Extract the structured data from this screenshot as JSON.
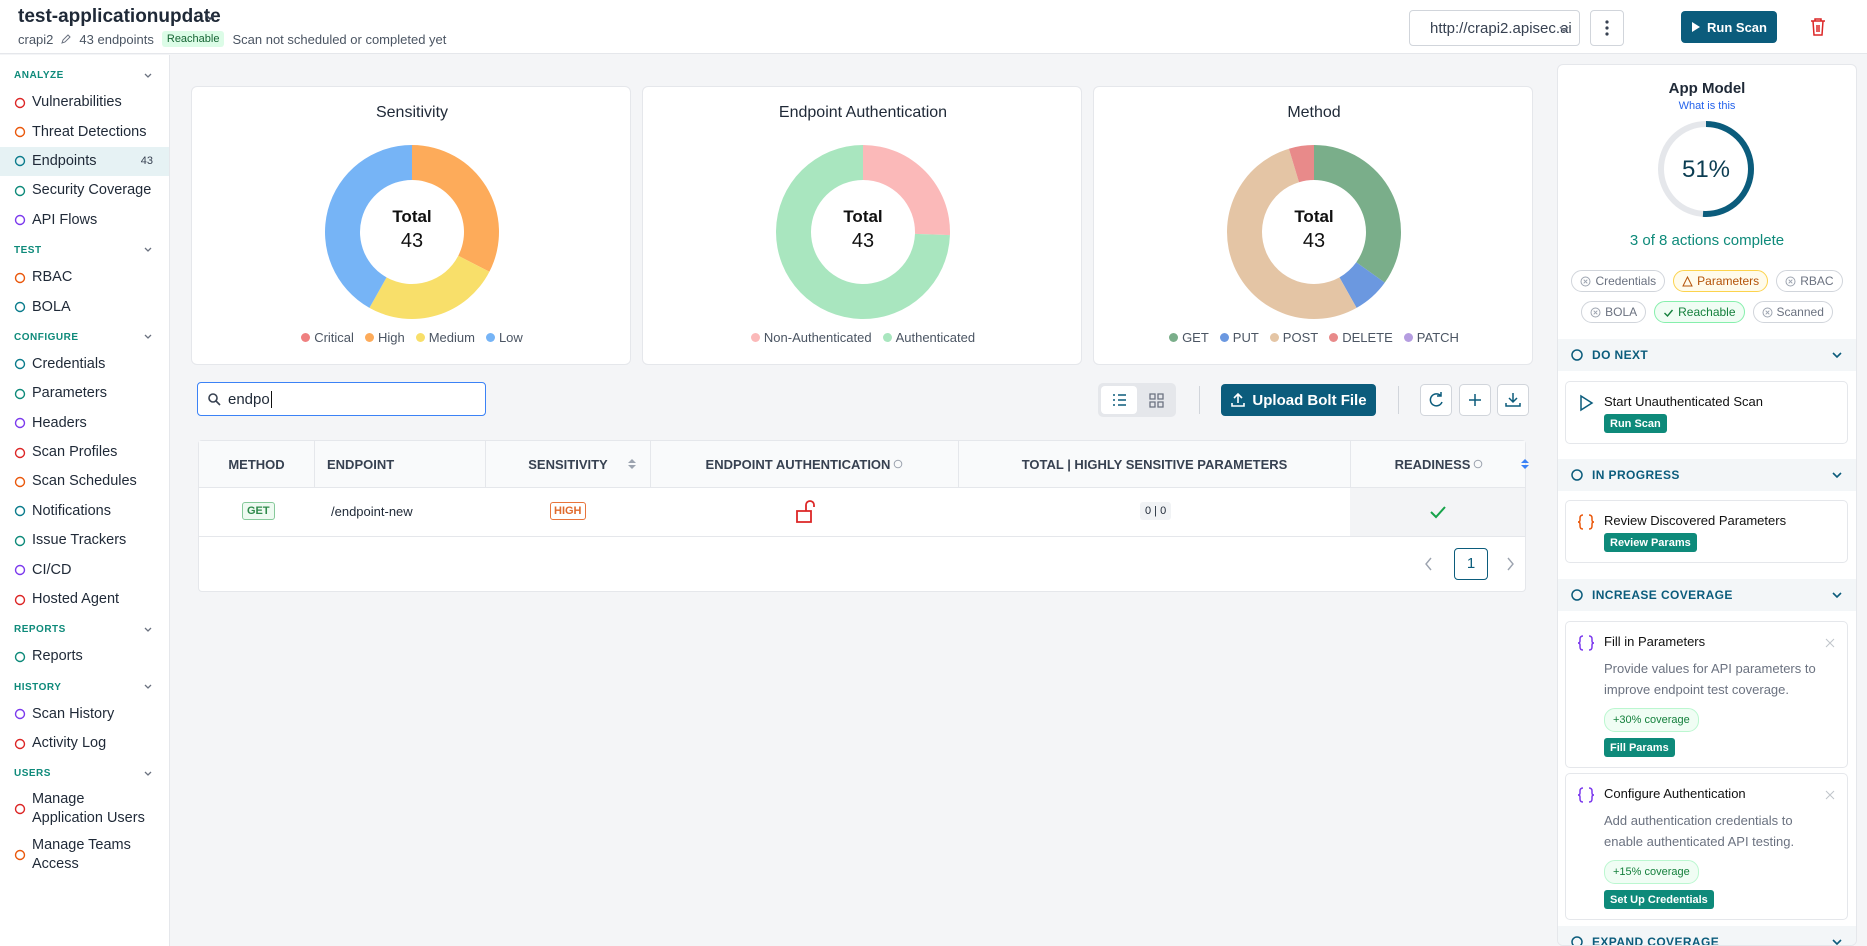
{
  "header": {
    "title": "test-applicationupdate",
    "project": "crapi2",
    "endpoints": "43 endpoints",
    "status": "Reachable",
    "scan_status": "Scan not scheduled or completed yet",
    "url": "http://crapi2.apisec.ai",
    "run_scan": "Run Scan"
  },
  "sidebar": [
    {
      "heading": "ANALYZE",
      "items": [
        {
          "label": "Vulnerabilities"
        },
        {
          "label": "Threat Detections"
        },
        {
          "label": "Endpoints",
          "count": 43
        },
        {
          "label": "Security Coverage"
        },
        {
          "label": "API Flows"
        }
      ]
    },
    {
      "heading": "TEST",
      "items": [
        {
          "label": "RBAC"
        },
        {
          "label": "BOLA"
        }
      ]
    },
    {
      "heading": "CONFIGURE",
      "items": [
        {
          "label": "Credentials"
        },
        {
          "label": "Parameters"
        },
        {
          "label": "Headers"
        },
        {
          "label": "Scan Profiles"
        },
        {
          "label": "Scan Schedules"
        },
        {
          "label": "Notifications"
        },
        {
          "label": "Issue Trackers"
        },
        {
          "label": "CI/CD"
        },
        {
          "label": "Hosted Agent"
        }
      ]
    },
    {
      "heading": "REPORTS",
      "items": [
        {
          "label": "Reports"
        }
      ]
    },
    {
      "heading": "HISTORY",
      "items": [
        {
          "label": "Scan History"
        },
        {
          "label": "Activity Log"
        }
      ]
    },
    {
      "heading": "USERS",
      "items": [
        {
          "label": "Manage Application Users"
        },
        {
          "label": "Manage Teams Access"
        }
      ]
    }
  ],
  "chart_data": [
    {
      "type": "pie",
      "title": "Sensitivity",
      "center_label": "Total",
      "center_value": 43,
      "categories": [
        "Critical",
        "High",
        "Medium",
        "Low"
      ],
      "values": [
        0,
        14,
        11,
        18
      ],
      "colors": [
        "#ef8080",
        "#fdab5a",
        "#f8df6a",
        "#76b4f6"
      ]
    },
    {
      "type": "pie",
      "title": "Endpoint Authentication",
      "center_label": "Total",
      "center_value": 43,
      "categories": [
        "Non-Authenticated",
        "Authenticated"
      ],
      "values": [
        11,
        32
      ],
      "colors": [
        "#fbb9b9",
        "#a9e6bf"
      ]
    },
    {
      "type": "pie",
      "title": "Method",
      "center_label": "Total",
      "center_value": 43,
      "categories": [
        "GET",
        "PUT",
        "POST",
        "DELETE",
        "PATCH"
      ],
      "values": [
        15,
        3,
        23,
        2,
        0
      ],
      "colors": [
        "#7aae8a",
        "#6b98e0",
        "#e4c5a5",
        "#e88a8a",
        "#b59de0"
      ]
    }
  ],
  "toolbar": {
    "search": "endpo",
    "upload": "Upload Bolt File"
  },
  "table": {
    "columns": [
      "METHOD",
      "ENDPOINT",
      "SENSITIVITY",
      "ENDPOINT AUTHENTICATION",
      "TOTAL | HIGHLY SENSITIVE PARAMETERS",
      "READINESS"
    ],
    "rows": [
      {
        "method": "GET",
        "endpoint": "/endpoint-new",
        "sensitivity": "HIGH",
        "params": "0 | 0"
      }
    ],
    "page": 1
  },
  "app_model": {
    "title": "App Model",
    "link": "What is this",
    "progress": 51,
    "progress_label": "51%",
    "summary": "3 of 8 actions complete",
    "chips": [
      "Credentials",
      "Parameters",
      "RBAC",
      "BOLA",
      "Reachable",
      "Scanned"
    ]
  },
  "sections": [
    {
      "heading": "DO NEXT",
      "cards": [
        {
          "title": "Start Unauthenticated Scan",
          "button": "Run Scan"
        }
      ]
    },
    {
      "heading": "IN PROGRESS",
      "cards": [
        {
          "title": "Review Discovered Parameters",
          "button": "Review Params"
        }
      ]
    },
    {
      "heading": "INCREASE COVERAGE",
      "cards": [
        {
          "title": "Fill in Parameters",
          "text": "Provide values for API parameters to improve endpoint test coverage.",
          "badge": "+30% coverage",
          "button": "Fill Params"
        },
        {
          "title": "Configure Authentication",
          "text": "Add authentication credentials to enable authenticated API testing.",
          "badge": "+15% coverage",
          "button": "Set Up Credentials"
        }
      ]
    },
    {
      "heading": "EXPAND COVERAGE",
      "cards": []
    }
  ]
}
